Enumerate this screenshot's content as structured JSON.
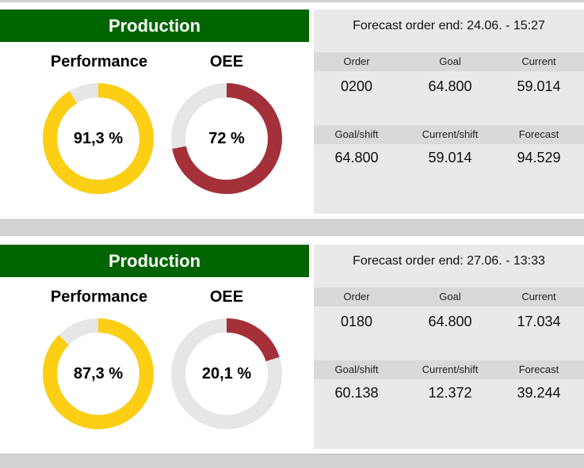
{
  "colors": {
    "header": "#006400",
    "performance": "#fcce14",
    "oee": "#a4303a",
    "remainder": "#e6e6e6"
  },
  "panels": [
    {
      "title": "Production",
      "performance": {
        "label": "Performance",
        "value": 91.3,
        "text": "91,3 %"
      },
      "oee": {
        "label": "OEE",
        "value": 72,
        "text": "72 %"
      },
      "forecast": "Forecast order end: 24.06. - 15:27",
      "row1": {
        "headers": [
          "Order",
          "Goal",
          "Current"
        ],
        "values": [
          "0200",
          "64.800",
          "59.014"
        ]
      },
      "row2": {
        "headers": [
          "Goal/shift",
          "Current/shift",
          "Forecast"
        ],
        "values": [
          "64.800",
          "59.014",
          "94.529"
        ]
      }
    },
    {
      "title": "Production",
      "performance": {
        "label": "Performance",
        "value": 87.3,
        "text": "87,3 %"
      },
      "oee": {
        "label": "OEE",
        "value": 20.1,
        "text": "20,1 %"
      },
      "forecast": "Forecast order end: 27.06. - 13:33",
      "row1": {
        "headers": [
          "Order",
          "Goal",
          "Current"
        ],
        "values": [
          "0180",
          "64.800",
          "17.034"
        ]
      },
      "row2": {
        "headers": [
          "Goal/shift",
          "Current/shift",
          "Forecast"
        ],
        "values": [
          "60.138",
          "12.372",
          "39.244"
        ]
      }
    }
  ]
}
